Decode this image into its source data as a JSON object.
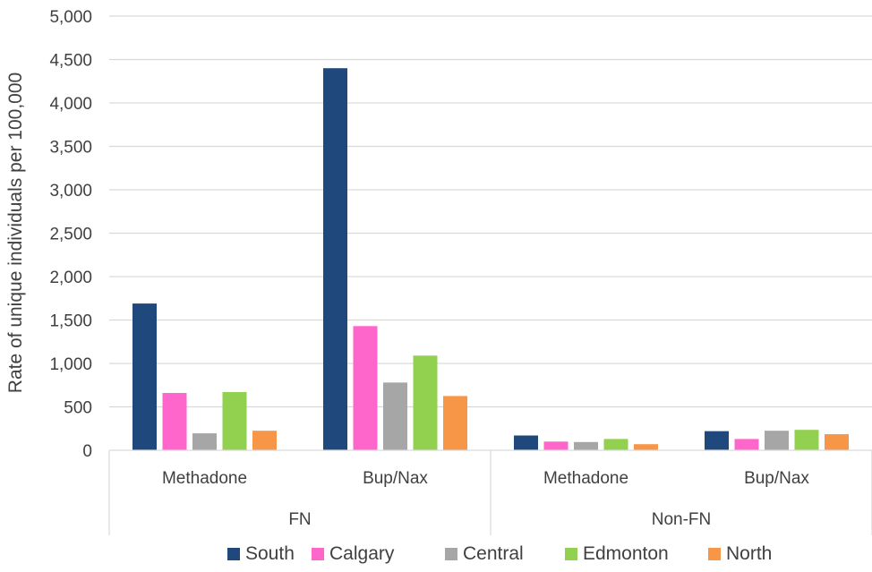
{
  "chart_data": {
    "type": "bar",
    "ylabel": "Rate of unique individuals per 100,000",
    "ylim": [
      0,
      5000
    ],
    "yticks": [
      "0",
      "500",
      "1,000",
      "1,500",
      "2,000",
      "2,500",
      "3,000",
      "3,500",
      "4,000",
      "4,500",
      "5,000"
    ],
    "groups": [
      {
        "label": "FN",
        "categories": [
          "Methadone",
          "Bup/Nax"
        ]
      },
      {
        "label": "Non-FN",
        "categories": [
          "Methadone",
          "Bup/Nax"
        ]
      }
    ],
    "series": [
      {
        "name": "South",
        "color": "#1F497D",
        "values": [
          1690,
          4400,
          170,
          220
        ]
      },
      {
        "name": "Calgary",
        "color": "#FF66CC",
        "values": [
          660,
          1430,
          100,
          130
        ]
      },
      {
        "name": "Central",
        "color": "#A6A6A6",
        "values": [
          195,
          780,
          95,
          225
        ]
      },
      {
        "name": "Edmonton",
        "color": "#92D050",
        "values": [
          670,
          1090,
          130,
          235
        ]
      },
      {
        "name": "North",
        "color": "#F79646",
        "values": [
          225,
          625,
          70,
          185
        ]
      }
    ],
    "grid": true,
    "legend_position": "bottom"
  }
}
